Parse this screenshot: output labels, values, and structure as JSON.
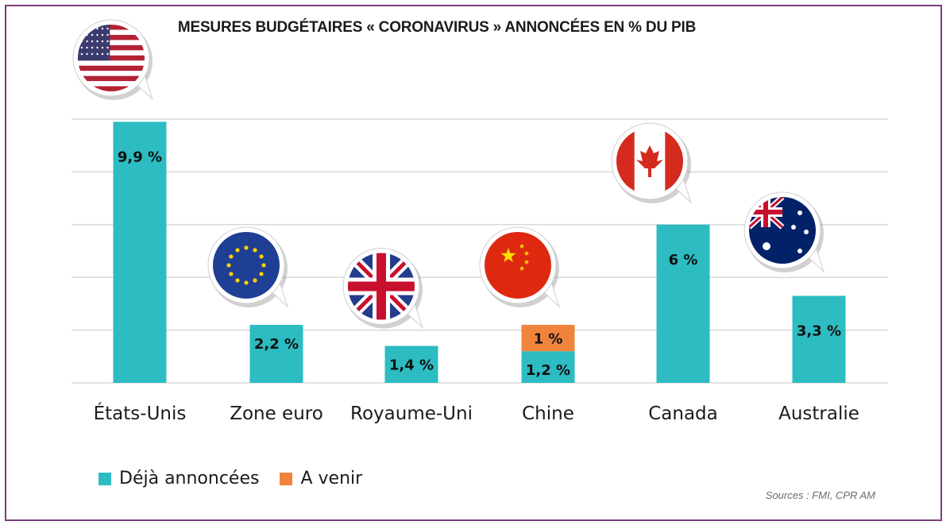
{
  "colors": {
    "deja": "#2cbcc1",
    "avenir": "#f0843c",
    "grid": "#d9d9d9",
    "frame": "#7a3e7e"
  },
  "chart_data": {
    "type": "bar",
    "stacked": true,
    "title": "MESURES BUDGÉTAIRES « CORONAVIRUS » ANNONCÉES EN % DU PIB",
    "xlabel": "",
    "ylabel": "",
    "ylim": [
      0,
      10
    ],
    "grid": true,
    "legend_position": "bottom-left",
    "categories": [
      "États-Unis",
      "Zone euro",
      "Royaume-Uni",
      "Chine",
      "Canada",
      "Australie"
    ],
    "flag_icons": [
      "us-flag-icon",
      "eu-flag-icon",
      "uk-flag-icon",
      "china-flag-icon",
      "canada-flag-icon",
      "australia-flag-icon"
    ],
    "series": [
      {
        "name": "Déjà annoncées",
        "values": [
          9.9,
          2.2,
          1.4,
          1.2,
          6,
          3.3
        ],
        "labels": [
          "9,9 %",
          "2,2 %",
          "1,4 %",
          "1,2 %",
          "6 %",
          "3,3 %"
        ]
      },
      {
        "name": "A venir",
        "values": [
          0,
          0,
          0,
          1,
          0,
          0
        ],
        "labels": [
          "",
          "",
          "",
          "1 %",
          "",
          ""
        ]
      }
    ]
  },
  "legend": {
    "deja_label": "Déjà annoncées",
    "avenir_label": "A venir"
  },
  "source": "Sources : FMI, CPR AM"
}
